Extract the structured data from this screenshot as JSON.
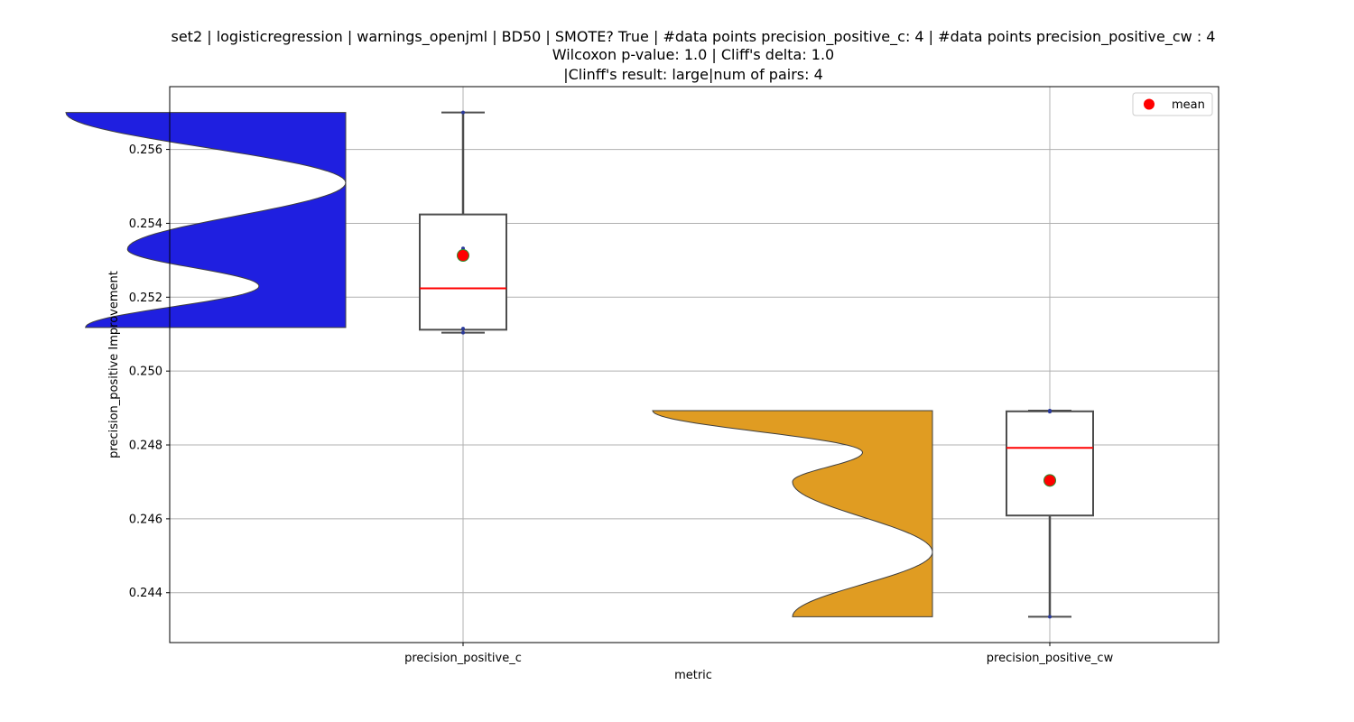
{
  "chart_data": {
    "type": "violin-box",
    "title_lines": [
      "set2 | logisticregression | warnings_openjml | BD50 | SMOTE? True | #data points precision_positive_c: 4 | #data points precision_positive_cw : 4",
      "Wilcoxon p-value: 1.0 | Cliff's delta: 1.0",
      "|Clinff's result: large|num of pairs: 4"
    ],
    "xlabel": "metric",
    "ylabel": "precision_positive Improvement",
    "ylim": [
      0.24265,
      0.2577
    ],
    "yticks": [
      "0.244",
      "0.246",
      "0.248",
      "0.250",
      "0.252",
      "0.254",
      "0.256"
    ],
    "grid": true,
    "legend": {
      "position": "top-right",
      "entries": [
        "mean"
      ]
    },
    "categories": [
      "precision_positive_c",
      "precision_positive_cw"
    ],
    "series": [
      {
        "category": "precision_positive_c",
        "color": "#1f1fe0",
        "points": [
          0.25104,
          0.25115,
          0.25332,
          0.257
        ],
        "box": {
          "min": 0.25104,
          "q1": 0.25112,
          "median": 0.25224,
          "q3": 0.25424,
          "max": 0.257
        },
        "mean": 0.25313,
        "violin_peaks": [
          {
            "y": 0.25118,
            "w": 0.93
          },
          {
            "y": 0.2523,
            "w": 0.31
          },
          {
            "y": 0.2533,
            "w": 0.78
          },
          {
            "y": 0.2551,
            "w": 0.0
          },
          {
            "y": 0.257,
            "w": 1.0
          }
        ]
      },
      {
        "category": "precision_positive_cw",
        "color": "#e09c22",
        "points": [
          0.24335,
          0.247,
          0.2489,
          0.24893
        ],
        "box": {
          "min": 0.24335,
          "q1": 0.24609,
          "median": 0.24792,
          "q3": 0.24891,
          "max": 0.24893
        },
        "mean": 0.24704,
        "violin_peaks": [
          {
            "y": 0.24335,
            "w": 0.5
          },
          {
            "y": 0.2451,
            "w": 0.0
          },
          {
            "y": 0.247,
            "w": 0.5
          },
          {
            "y": 0.2478,
            "w": 0.25
          },
          {
            "y": 0.24893,
            "w": 1.0
          }
        ]
      }
    ]
  }
}
